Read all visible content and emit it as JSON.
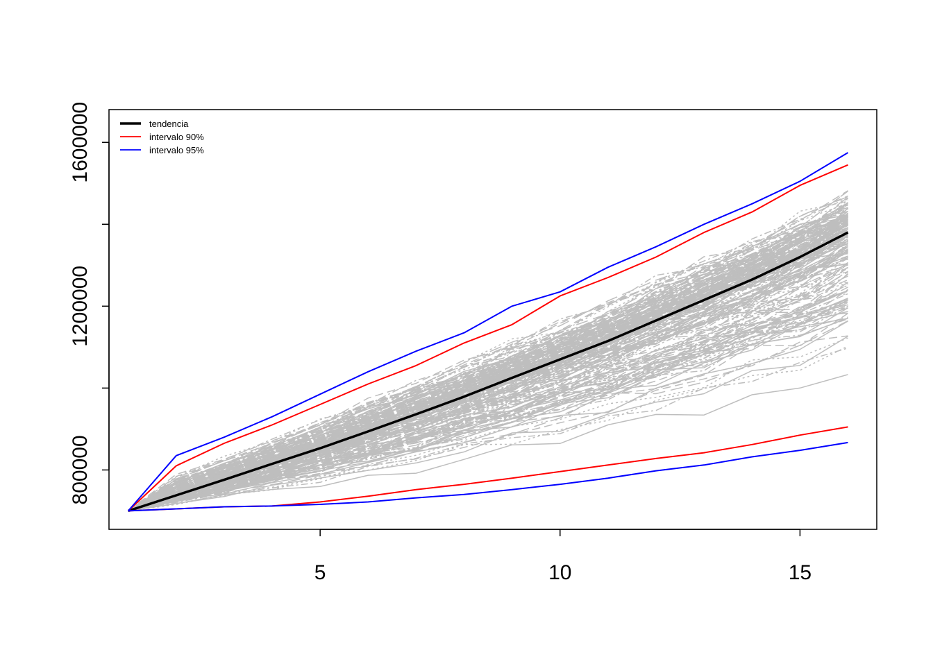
{
  "chart_data": {
    "type": "line",
    "title": "",
    "xlabel": "",
    "ylabel": "",
    "xlim": [
      0.6,
      16.6
    ],
    "ylim": [
      655000,
      1680000
    ],
    "grid": false,
    "x": [
      1,
      2,
      3,
      4,
      5,
      6,
      7,
      8,
      9,
      10,
      11,
      12,
      13,
      14,
      15,
      16
    ],
    "x_ticks": [
      5,
      10,
      15
    ],
    "x_tick_labels": [
      "5",
      "10",
      "15"
    ],
    "y_ticks": [
      800000,
      1000000,
      1200000,
      1400000,
      1600000
    ],
    "y_tick_labels": [
      "800000",
      "",
      "1200000",
      "",
      "1600000"
    ],
    "legend": {
      "position": "top-left",
      "entries": [
        {
          "label": "tendencia",
          "color": "#000000"
        },
        {
          "label": "intervalo 90%",
          "color": "#ff0000"
        },
        {
          "label": "intervalo 95%",
          "color": "#0000ff"
        }
      ]
    },
    "simulations": {
      "description": "many simulated paths (grey) spreading from the start value",
      "color": "#bebebe",
      "count": 220
    },
    "series": [
      {
        "name": "tendencia",
        "color": "#000000",
        "values": [
          700000,
          738000,
          776000,
          815000,
          853000,
          894000,
          936000,
          979000,
          1025000,
          1070000,
          1115000,
          1165000,
          1215000,
          1265000,
          1320000,
          1380000
        ]
      },
      {
        "name": "intervalo 90% superior",
        "color": "#ff0000",
        "values": [
          700000,
          810000,
          865000,
          910000,
          960000,
          1010000,
          1055000,
          1110000,
          1155000,
          1225000,
          1270000,
          1320000,
          1380000,
          1430000,
          1495000,
          1545000
        ]
      },
      {
        "name": "intervalo 90% inferior",
        "color": "#ff0000",
        "values": [
          700000,
          705000,
          710000,
          712000,
          722000,
          736000,
          752000,
          765000,
          780000,
          796000,
          812000,
          828000,
          842000,
          862000,
          885000,
          905000
        ]
      },
      {
        "name": "intervalo 95% superior",
        "color": "#0000ff",
        "values": [
          700000,
          835000,
          880000,
          930000,
          985000,
          1040000,
          1090000,
          1135000,
          1200000,
          1235000,
          1295000,
          1345000,
          1400000,
          1450000,
          1505000,
          1575000
        ]
      },
      {
        "name": "intervalo 95% inferior",
        "color": "#0000ff",
        "values": [
          700000,
          705000,
          710000,
          712000,
          716000,
          722000,
          732000,
          740000,
          752000,
          765000,
          780000,
          798000,
          812000,
          832000,
          848000,
          867000
        ]
      }
    ]
  }
}
